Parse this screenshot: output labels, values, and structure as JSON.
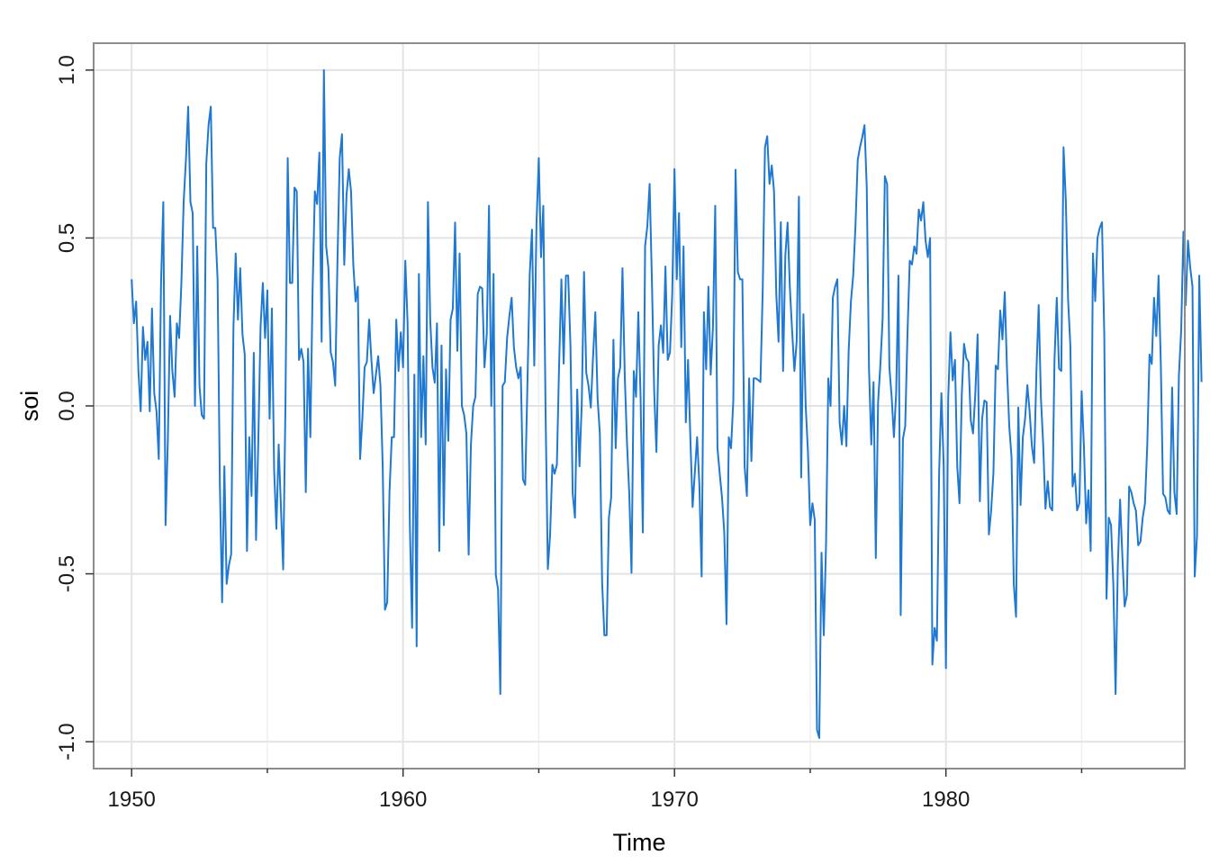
{
  "chart_data": {
    "type": "line",
    "xlabel": "Time",
    "ylabel": "soi",
    "xlim": [
      1948.6,
      1988.8
    ],
    "ylim": [
      -1.08,
      1.08
    ],
    "x_ticks": [
      1950,
      1960,
      1970,
      1980
    ],
    "x_tick_labels": [
      "1950",
      "1960",
      "1970",
      "1980"
    ],
    "x_minor_ticks": [
      1955,
      1965,
      1975,
      1985
    ],
    "y_ticks": [
      -1.0,
      -0.5,
      0.0,
      0.5,
      1.0
    ],
    "y_tick_labels": [
      "-1.0",
      "-0.5",
      "0.0",
      "0.5",
      "1.0"
    ],
    "grid": true,
    "line_color": "#1f78d1",
    "series": [
      {
        "x_start": 1950.0,
        "x_step": 0.08333333,
        "values": [
          0.377,
          0.246,
          0.311,
          0.104,
          -0.016,
          0.235,
          0.137,
          0.191,
          -0.016,
          0.29,
          0.038,
          -0.016,
          -0.158,
          0.366,
          0.607,
          -0.355,
          -0.104,
          0.268,
          0.104,
          0.027,
          0.246,
          0.202,
          0.366,
          0.607,
          0.732,
          0.891,
          0.607,
          0.574,
          0.0,
          0.475,
          0.06,
          -0.027,
          -0.038,
          0.721,
          0.836,
          0.891,
          0.53,
          0.53,
          0.377,
          -0.23,
          -0.585,
          -0.18,
          -0.53,
          -0.475,
          -0.442,
          0.23,
          0.454,
          0.257,
          0.41,
          0.213,
          0.153,
          -0.432,
          -0.093,
          -0.268,
          0.158,
          -0.399,
          -0.104,
          0.235,
          0.366,
          0.202,
          0.344,
          -0.038,
          0.29,
          -0.191,
          -0.366,
          -0.115,
          -0.301,
          -0.487,
          0.0,
          0.738,
          0.366,
          0.366,
          0.65,
          0.639,
          0.137,
          0.17,
          0.131,
          -0.257,
          0.17,
          -0.093,
          0.344,
          0.639,
          0.601,
          0.754,
          0.191,
          1.0,
          0.475,
          0.41,
          0.16,
          0.131,
          0.06,
          0.432,
          0.738,
          0.809,
          0.42,
          0.628,
          0.705,
          0.639,
          0.421,
          0.311,
          0.355,
          -0.158,
          -0.038,
          0.115,
          0.131,
          0.257,
          0.137,
          0.038,
          0.093,
          0.148,
          0.06,
          -0.18,
          -0.607,
          -0.585,
          -0.257,
          -0.093,
          -0.093,
          0.257,
          0.104,
          0.219,
          0.115,
          0.432,
          0.246,
          -0.355,
          -0.661,
          0.093,
          -0.716,
          0.393,
          -0.093,
          0.148,
          -0.115,
          0.607,
          0.257,
          0.115,
          0.069,
          0.246,
          -0.432,
          0.18,
          -0.355,
          0.109,
          -0.104,
          0.257,
          0.29,
          0.546,
          0.164,
          0.454,
          0.0,
          -0.027,
          -0.082,
          -0.443,
          -0.115,
          0.0,
          0.027,
          0.333,
          0.355,
          0.35,
          0.115,
          0.213,
          0.596,
          0.0,
          0.393,
          -0.503,
          -0.546,
          -0.858,
          0.06,
          0.071,
          0.202,
          0.268,
          0.322,
          0.175,
          0.115,
          0.082,
          0.115,
          -0.219,
          -0.235,
          0.071,
          0.393,
          0.525,
          0.12,
          0.546,
          0.738,
          0.443,
          0.596,
          -0.016,
          -0.486,
          -0.385,
          -0.175,
          -0.202,
          -0.175,
          0.126,
          0.377,
          0.126,
          0.388,
          0.388,
          0.18,
          -0.262,
          -0.333,
          0.049,
          -0.18,
          0.005,
          0.399,
          0.098,
          0.06,
          -0.005,
          0.148,
          0.279,
          0.022,
          -0.082,
          -0.525,
          -0.683,
          -0.683,
          -0.333,
          -0.273,
          0.197,
          -0.126,
          0.082,
          0.115,
          0.41,
          0.093,
          -0.109,
          -0.262,
          -0.497,
          0.104,
          0.027,
          0.279,
          0.027,
          -0.377,
          0.475,
          0.536,
          0.661,
          0.377,
          0.049,
          -0.137,
          0.18,
          0.24,
          0.158,
          0.415,
          0.137,
          0.159,
          0.333,
          0.705,
          0.377,
          0.574,
          0.175,
          0.475,
          -0.049,
          0.137,
          -0.093,
          -0.301,
          -0.197,
          -0.093,
          -0.235,
          -0.508,
          0.279,
          0.109,
          0.355,
          0.093,
          0.235,
          0.596,
          -0.126,
          -0.202,
          -0.273,
          -0.377,
          -0.65,
          -0.093,
          -0.126,
          0.016,
          0.703,
          0.399,
          0.377,
          0.377,
          -0.18,
          -0.268,
          0.082,
          -0.164,
          0.082,
          0.082,
          0.077,
          0.071,
          0.344,
          0.77,
          0.803,
          0.661,
          0.716,
          0.639,
          0.333,
          0.191,
          0.547,
          0.104,
          0.448,
          0.546,
          0.352,
          0.224,
          0.104,
          0.191,
          0.623,
          -0.213,
          0.273,
          0.0,
          -0.137,
          -0.355,
          -0.29,
          -0.339,
          -0.964,
          -0.989,
          -0.437,
          -0.683,
          -0.41,
          0.082,
          0.0,
          0.322,
          0.355,
          0.377,
          -0.049,
          -0.115,
          0.0,
          -0.12,
          0.164,
          0.311,
          0.388,
          0.535,
          0.732,
          0.77,
          0.8,
          0.836,
          0.65,
          0.109,
          -0.115,
          0.071,
          -0.453,
          0.011,
          0.12,
          0.257,
          0.684,
          0.661,
          0.115,
          0.027,
          -0.093,
          0.038,
          0.388,
          -0.623,
          -0.098,
          -0.06,
          0.213,
          0.432,
          0.421,
          0.475,
          0.453,
          0.585,
          0.552,
          0.607,
          0.492,
          0.443,
          0.5,
          -0.77,
          -0.661,
          -0.699,
          -0.197,
          0.038,
          -0.175,
          -0.781,
          0.021,
          0.219,
          0.076,
          0.137,
          -0.18,
          -0.29,
          0.033,
          0.185,
          0.142,
          0.131,
          -0.044,
          -0.082,
          0.038,
          0.213,
          -0.284,
          -0.038,
          0.016,
          0.011,
          -0.383,
          -0.311,
          -0.198,
          0.12,
          0.109,
          0.284,
          0.198,
          0.339,
          0.109,
          -0.061,
          -0.153,
          -0.53,
          -0.628,
          -0.005,
          -0.295,
          -0.093,
          -0.038,
          0.062,
          -0.017,
          -0.12,
          -0.17,
          0.1,
          0.3,
          0.022,
          -0.115,
          -0.306,
          -0.224,
          -0.301,
          -0.311,
          0.137,
          0.322,
          0.111,
          0.104,
          0.77,
          0.612,
          0.317,
          0.18,
          -0.24,
          -0.202,
          -0.311,
          -0.29,
          0.044,
          -0.12,
          -0.35,
          -0.251,
          -0.432,
          0.454,
          0.312,
          0.5,
          0.53,
          0.547,
          0.213,
          -0.574,
          -0.333,
          -0.355,
          -0.53,
          -0.858,
          -0.475,
          -0.279,
          -0.448,
          -0.597,
          -0.563,
          -0.24,
          -0.258,
          -0.29,
          -0.312,
          -0.415,
          -0.404,
          -0.333,
          -0.29,
          -0.12,
          0.153,
          0.125,
          0.322,
          0.208,
          0.388,
          0.125,
          -0.262,
          -0.272,
          -0.311,
          -0.322,
          0.055,
          -0.257,
          -0.322,
          0.092,
          0.224,
          0.519,
          0.3,
          0.492,
          0.412,
          0.355,
          -0.508,
          -0.385,
          0.388,
          0.071
        ]
      }
    ]
  }
}
